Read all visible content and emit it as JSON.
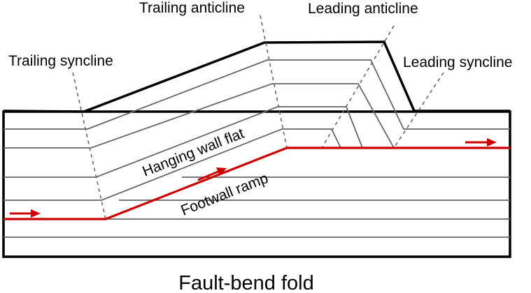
{
  "labels": {
    "trailing_anticline": "Trailing anticline",
    "leading_anticline": "Leading anticline",
    "trailing_syncline": "Trailing syncline",
    "leading_syncline": "Leading syncline",
    "hanging_wall_flat": "Hanging wall flat",
    "footwall_ramp": "Footwall ramp"
  },
  "caption": "Fault-bend fold",
  "colors": {
    "fault": "#cc0000",
    "layer_lines": "#666666",
    "outline": "#000000"
  }
}
